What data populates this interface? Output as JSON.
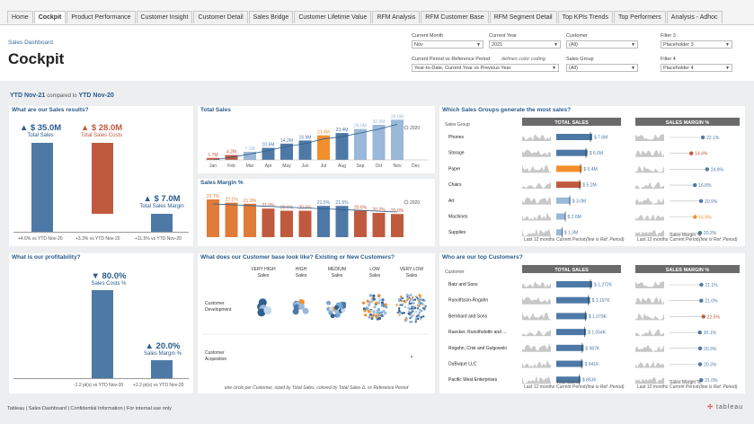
{
  "tabs": [
    "Home",
    "Cockpit",
    "Product Performance",
    "Customer Insight",
    "Customer Detail",
    "Sales Bridge",
    "Customer Lifetime Value",
    "RFM Analysis",
    "RFM Customer Base",
    "RFM Segment Detail",
    "Top KPIs Trends",
    "Top Performers",
    "Analysis - Adhoc"
  ],
  "header": {
    "breadcrumb": "Sales Dashboard",
    "title": "Cockpit"
  },
  "filters": {
    "current_month": {
      "label": "Current Month",
      "value": "Nov"
    },
    "current_year": {
      "label": "Current Year",
      "value": "2021"
    },
    "customer": {
      "label": "Customer",
      "value": "(All)"
    },
    "filter3": {
      "label": "Filter 3",
      "value": "Placeholder 3"
    },
    "period": {
      "label": "Current Period vs Reference Period",
      "value": "Year-to-Date, Current Year vs Previous Year",
      "note": "defines color coding"
    },
    "sales_group": {
      "label": "Sales Group",
      "value": "(All)"
    },
    "filter4": {
      "label": "Filter 4",
      "value": "Placeholder 4"
    }
  },
  "ytd": {
    "label": "YTD Nov-21",
    "compared": "compared to",
    "ref": "YTD Nov-20"
  },
  "sales_results": {
    "title": "What are our Sales results?",
    "total_sales": {
      "value": "▲ $ 35.0M",
      "label": "Total Sales",
      "foot": "+4.6% vs YTD Nov-20"
    },
    "total_costs": {
      "value": "▲ $ 28.0M",
      "label": "Total Sales Costs",
      "foot": "+3.3% vs YTD Nov-20"
    },
    "margin": {
      "value": "▲ $ 7.0M",
      "label": "Total Sales Margin",
      "foot": "+11.5% vs YTD Nov-20"
    }
  },
  "profitability": {
    "title": "What is our profitability?",
    "costs_pct": {
      "value": "▼ 80.0%",
      "label": "Sales Costs %",
      "foot": "-1.2 pt(s) vs YTD Nov-20"
    },
    "margin_pct": {
      "value": "▲ 20.0%",
      "label": "Sales Margin %",
      "foot": "+1.2 pt(s) vs YTD Nov-20"
    }
  },
  "total_sales_chart": {
    "title": "Total Sales",
    "months": [
      "Jan",
      "Feb",
      "Mar",
      "Apr",
      "May",
      "Jun",
      "Jul",
      "Aug",
      "Sep",
      "Oct",
      "Nov",
      "Dec"
    ],
    "values": [
      1.7,
      4.2,
      7.1,
      10.5,
      14.2,
      16.9,
      21.4,
      23.4,
      26.9,
      30.5,
      35.0,
      null
    ],
    "labels": [
      "1.7M",
      "4.2M",
      "7.1M",
      "10.5M",
      "14.2M",
      "16.9M",
      "21.4M",
      "23.4M",
      "26.9M",
      "30.5M",
      "35.0M",
      ""
    ],
    "legend_2020": "2020"
  },
  "margin_chart": {
    "title": "Sales Margin %",
    "values": [
      22.7,
      22.1,
      21.9,
      21.0,
      20.6,
      20.6,
      21.5,
      21.5,
      20.6,
      20.2,
      20.0,
      null
    ],
    "labels": [
      "22.7%",
      "22.1%",
      "21.9%",
      "21.0%",
      "20.6%",
      "20.6%",
      "21.5%",
      "21.5%",
      "20.6%",
      "20.2%",
      "20.0%",
      ""
    ],
    "legend_2020": "2020"
  },
  "sales_groups": {
    "title": "Which Sales Groups generate the most sales?",
    "col_label": "Sales Group",
    "header_sales": "TOTAL SALES",
    "header_margin": "SALES MARGIN %",
    "rows": [
      {
        "name": "Phones",
        "sales": "$ 7.6M",
        "sv": 7.6,
        "margin": "22.1%",
        "mv": 22.1,
        "color": "#4e79a7"
      },
      {
        "name": "Storage",
        "sales": "$ 6.6M",
        "sv": 6.6,
        "margin": "14.4%",
        "mv": 14.4,
        "color": "#4e79a7"
      },
      {
        "name": "Paper",
        "sales": "$ 5.4M",
        "sv": 5.4,
        "margin": "24.9%",
        "mv": 24.9,
        "color": "#f28e2b"
      },
      {
        "name": "Chairs",
        "sales": "$ 5.2M",
        "sv": 5.2,
        "margin": "16.8%",
        "mv": 16.8,
        "color": "#c05a3f"
      },
      {
        "name": "Art",
        "sales": "$ 3.0M",
        "sv": 3.0,
        "margin": "20.9%",
        "mv": 20.9,
        "color": "#9ab8d8"
      },
      {
        "name": "Machines",
        "sales": "$ 2.0M",
        "sv": 2.0,
        "margin": "16.9%",
        "mv": 16.9,
        "color": "#9ab8d8"
      },
      {
        "name": "Supplies",
        "sales": "$ 1.3M",
        "sv": 1.3,
        "margin": "20.2%",
        "mv": 20.2,
        "color": "#9ab8d8"
      }
    ],
    "legend": {
      "last12": "Last 12 months",
      "current": "Current Period",
      "ref": "(line is Ref. Period)",
      "margin_label": "Sales Margin %"
    }
  },
  "customer_base": {
    "title": "What does our Customer base look like? Existing or New Customers?",
    "columns": [
      "VERY HIGH Sales",
      "HIGH Sales",
      "MEDIUM Sales",
      "LOW Sales",
      "VERY LOW Sales"
    ],
    "rows": [
      "Customer Development",
      "Customer Acquisition"
    ],
    "footnote": "one circle per Customer, sized by Total Sales, colored by Total Sales Δ, vs Reference Period"
  },
  "top_customers": {
    "title": "Who are our top Customers?",
    "col_label": "Customer",
    "header_sales": "TOTAL SALES",
    "header_margin": "SALES MARGIN %",
    "rows": [
      {
        "name": "Batz and Sons",
        "sales": "$ 1,272K",
        "sv": 1272,
        "margin": "21.1%",
        "mv": 21.1
      },
      {
        "name": "Runolfsson-Rogahn",
        "sales": "$ 1,197K",
        "sv": 1197,
        "margin": "21.0%",
        "mv": 21.0
      },
      {
        "name": "Bernhard and Sons",
        "sales": "$ 1,079K",
        "sv": 1079,
        "margin": "22.5%",
        "mv": 22.5
      },
      {
        "name": "Ruecker, Runolfsdottir and ...",
        "sales": "$ 1,054K",
        "sv": 1054,
        "margin": "20.1%",
        "mv": 20.1
      },
      {
        "name": "Rogahn, Crist and Gulgowski",
        "sales": "$ 967K",
        "sv": 967,
        "margin": "20.3%",
        "mv": 20.3
      },
      {
        "name": "DuBuque LLC",
        "sales": "$ 941K",
        "sv": 941,
        "margin": "20.3%",
        "mv": 20.3
      },
      {
        "name": "Pacific West Enterprises",
        "sales": "$ 853K",
        "sv": 853,
        "margin": "21.0%",
        "mv": 21.0
      }
    ],
    "legend": {
      "last12": "Last 12 months",
      "current": "Current Period",
      "ref": "(line is Ref. Period)",
      "sales_label": "Total Sales",
      "margin_label": "Sales Margin %"
    }
  },
  "footer": "Tableau | Sales Dashboard | Confidential Information | For internal use only",
  "brand": "tableau",
  "colors": {
    "blue": "#4e79a7",
    "red": "#c05a3f",
    "orange": "#f28e2b",
    "lightblue": "#9ab8d8",
    "title_blue": "#2a5b8c"
  }
}
